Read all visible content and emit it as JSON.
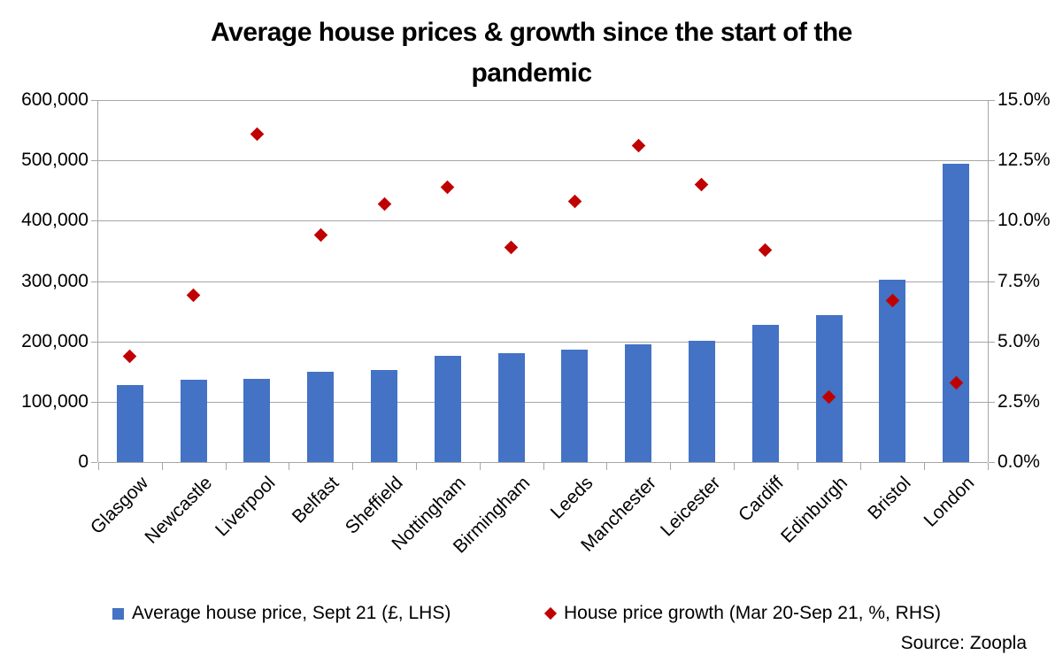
{
  "title_lines": [
    "Average house prices & growth since the start of the",
    "pandemic"
  ],
  "legend": {
    "price_label": "Average house price, Sept 21 (£, LHS)",
    "growth_label": "House price growth (Mar 20-Sep 21, %, RHS)"
  },
  "source": "Source: Zoopla",
  "colors": {
    "bar": "#4472C4",
    "diamond": "#C00000",
    "grid": "#A6A6A6",
    "text": "#000000",
    "background": "#FFFFFF"
  },
  "chart_data": {
    "type": "bar",
    "title": "Average house prices & growth since the start of the pandemic",
    "categories": [
      "Glasgow",
      "Newcastle",
      "Liverpool",
      "Belfast",
      "Sheffield",
      "Nottingham",
      "Birmingham",
      "Leeds",
      "Manchester",
      "Leicester",
      "Cardiff",
      "Edinburgh",
      "Bristol",
      "London"
    ],
    "series": [
      {
        "name": "Average house price, Sept 21 (£, LHS)",
        "type": "bar",
        "axis": "left",
        "color": "#4472C4",
        "values": [
          127000,
          136000,
          137500,
          149000,
          152000,
          176000,
          181000,
          186000,
          195500,
          201000,
          228000,
          244000,
          302000,
          494000
        ]
      },
      {
        "name": "House price growth (Mar 20-Sep 21, %, RHS)",
        "type": "scatter",
        "marker": "diamond",
        "axis": "right",
        "color": "#C00000",
        "values": [
          4.4,
          6.9,
          13.6,
          9.4,
          10.7,
          11.4,
          8.9,
          10.8,
          13.1,
          11.5,
          8.8,
          2.7,
          6.7,
          3.3
        ]
      }
    ],
    "left_axis": {
      "min": 0,
      "max": 600000,
      "tick_step": 100000,
      "tick_labels": [
        "600,000",
        "500,000",
        "400,000",
        "300,000",
        "200,000",
        "100,000",
        "0"
      ]
    },
    "right_axis": {
      "min": 0,
      "max": 15,
      "tick_step": 2.5,
      "tick_labels": [
        "15.0%",
        "12.5%",
        "10.0%",
        "7.5%",
        "5.0%",
        "2.5%",
        "0.0%"
      ]
    },
    "grid": true,
    "legend_position": "bottom",
    "source": "Source: Zoopla"
  }
}
